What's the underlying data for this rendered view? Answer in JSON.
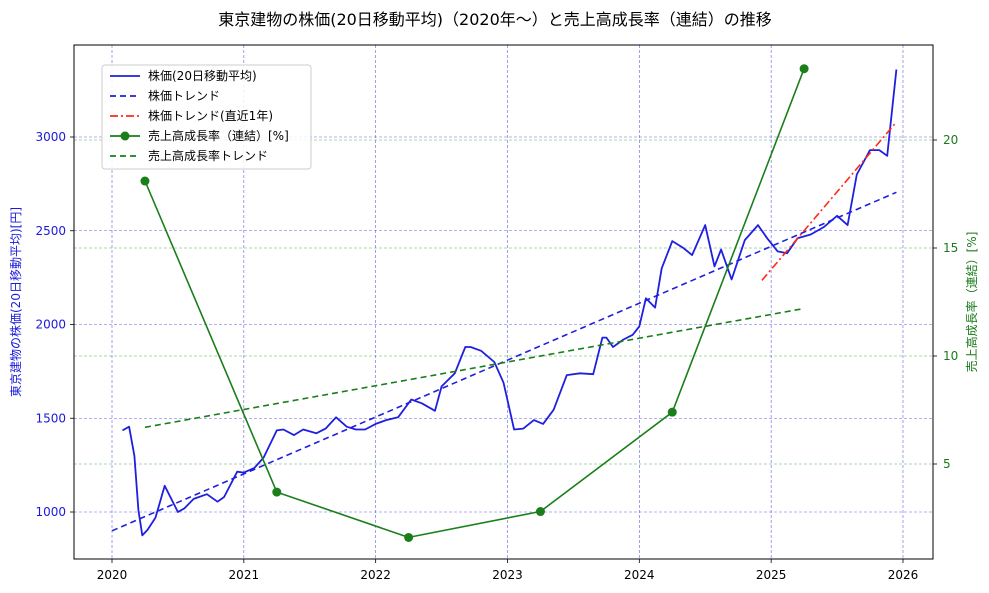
{
  "chart_data": {
    "type": "line",
    "title": "東京建物の株価(20日移動平均)（2020年〜）と売上高成長率（連結）の推移",
    "xlabel": "",
    "ylabel_left": "東京建物の株価(20日移動平均)[円]",
    "ylabel_right": "売上高成長率（連結）[%]",
    "x_ticks": [
      "2020",
      "2021",
      "2022",
      "2023",
      "2024",
      "2025",
      "2026"
    ],
    "y_left_ticks": [
      "1000",
      "1500",
      "2000",
      "2500",
      "3000"
    ],
    "y_right_ticks": [
      "5",
      "10",
      "15",
      "20"
    ],
    "xlim": [
      2019.7,
      2026.23
    ],
    "ylim_left": [
      760,
      3440
    ],
    "ylim_right": [
      0.7,
      24.4
    ],
    "grid": true,
    "legend_position": "upper left",
    "legend": [
      {
        "label": "株価(20日移動平均)",
        "color": "#1f1fdf",
        "style": "solid"
      },
      {
        "label": "株価トレンド",
        "color": "#1f1fdf",
        "style": "dashed"
      },
      {
        "label": "株価トレンド(直近1年)",
        "color": "#ff2a1a",
        "style": "dashdot"
      },
      {
        "label": "売上高成長率（連結）[%]",
        "color": "#1a7f1a",
        "style": "solid-marker"
      },
      {
        "label": "売上高成長率トレンド",
        "color": "#1a7f1a",
        "style": "dashed"
      }
    ],
    "series": [
      {
        "name": "株価(20日移動平均)",
        "axis": "left",
        "color": "#1f1fdf",
        "x": [
          2020.08,
          2020.13,
          2020.17,
          2020.2,
          2020.23,
          2020.27,
          2020.33,
          2020.4,
          2020.45,
          2020.5,
          2020.55,
          2020.62,
          2020.72,
          2020.8,
          2020.85,
          2020.95,
          2021.0,
          2021.08,
          2021.15,
          2021.25,
          2021.3,
          2021.38,
          2021.45,
          2021.55,
          2021.62,
          2021.7,
          2021.78,
          2021.85,
          2021.92,
          2022.0,
          2022.08,
          2022.17,
          2022.27,
          2022.35,
          2022.45,
          2022.5,
          2022.6,
          2022.68,
          2022.72,
          2022.8,
          2022.9,
          2022.97,
          2023.05,
          2023.12,
          2023.2,
          2023.27,
          2023.35,
          2023.45,
          2023.55,
          2023.65,
          2023.72,
          2023.75,
          2023.8,
          2023.88,
          2023.95,
          2024.0,
          2024.05,
          2024.12,
          2024.17,
          2024.25,
          2024.33,
          2024.4,
          2024.5,
          2024.57,
          2024.62,
          2024.7,
          2024.8,
          2024.9,
          2024.97,
          2025.05,
          2025.12,
          2025.2,
          2025.3,
          2025.4,
          2025.5,
          2025.58,
          2025.65,
          2025.75,
          2025.82,
          2025.88,
          2025.95
        ],
        "values": [
          1435,
          1455,
          1300,
          1010,
          875,
          905,
          970,
          1140,
          1070,
          1000,
          1020,
          1070,
          1095,
          1055,
          1080,
          1215,
          1210,
          1235,
          1290,
          1435,
          1440,
          1410,
          1440,
          1420,
          1445,
          1505,
          1455,
          1440,
          1440,
          1470,
          1490,
          1505,
          1600,
          1580,
          1540,
          1670,
          1740,
          1880,
          1880,
          1860,
          1800,
          1690,
          1440,
          1445,
          1490,
          1470,
          1545,
          1730,
          1740,
          1735,
          1930,
          1930,
          1880,
          1920,
          1945,
          1990,
          2140,
          2090,
          2300,
          2445,
          2410,
          2370,
          2530,
          2310,
          2400,
          2240,
          2450,
          2530,
          2460,
          2390,
          2380,
          2460,
          2480,
          2520,
          2580,
          2530,
          2800,
          2930,
          2930,
          2900,
          3360
        ]
      },
      {
        "name": "株価トレンド",
        "axis": "left",
        "color": "#1f1fdf",
        "x": [
          2020.0,
          2025.95
        ],
        "values": [
          900,
          2705
        ]
      },
      {
        "name": "株価トレンド(直近1年)",
        "axis": "left",
        "color": "#ff2a1a",
        "x": [
          2024.93,
          2025.95
        ],
        "values": [
          2235,
          3080
        ]
      },
      {
        "name": "売上高成長率（連結）[%]",
        "axis": "right",
        "color": "#1a7f1a",
        "x": [
          2020.25,
          2021.25,
          2022.25,
          2023.25,
          2024.25,
          2025.25
        ],
        "values": [
          18.1,
          3.7,
          1.6,
          2.8,
          7.4,
          23.3
        ]
      },
      {
        "name": "売上高成長率トレンド",
        "axis": "right",
        "color": "#1a7f1a",
        "x": [
          2020.25,
          2025.25
        ],
        "values": [
          6.7,
          12.2
        ]
      }
    ]
  }
}
